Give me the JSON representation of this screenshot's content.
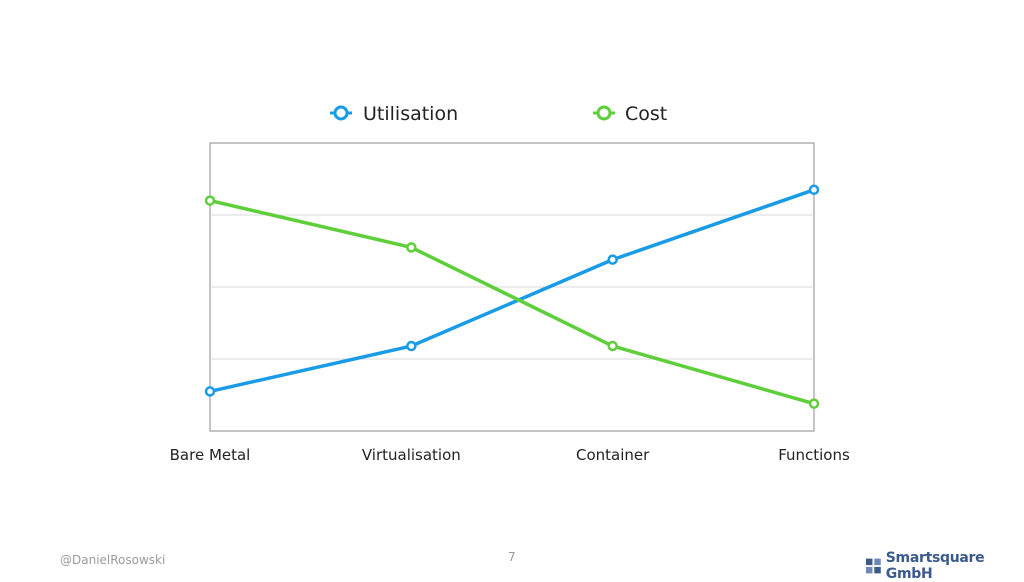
{
  "chart_data": {
    "type": "line",
    "title": "",
    "xlabel": "",
    "ylabel": "",
    "categories": [
      "Bare Metal",
      "Virtualisation",
      "Container",
      "Functions"
    ],
    "ylim": [
      0,
      4
    ],
    "grid": true,
    "legend_position": "top",
    "series": [
      {
        "name": "Utilisation",
        "color": "#1a9be6",
        "values": [
          0.55,
          1.18,
          2.38,
          3.35
        ]
      },
      {
        "name": "Cost",
        "color": "#5ecf3a",
        "values": [
          3.2,
          2.55,
          1.18,
          0.38
        ]
      }
    ]
  },
  "footer": {
    "author": "@DanielRosowski",
    "page_number": "7",
    "brand": "Smartsquare GmbH"
  }
}
